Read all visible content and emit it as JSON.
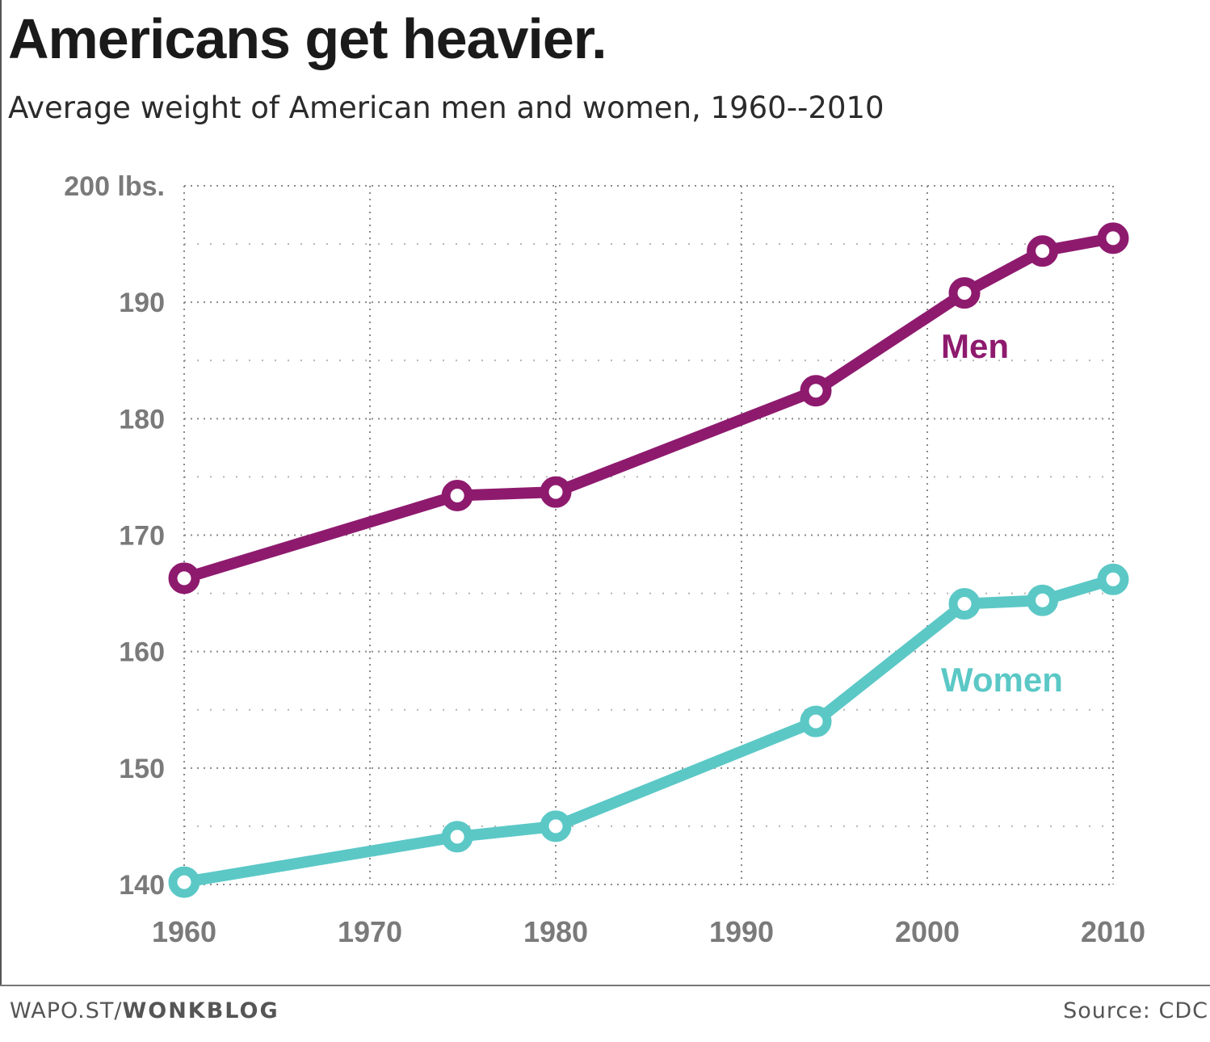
{
  "header": {
    "title": "Americans get heavier.",
    "subtitle": "Average weight of American men and women, 1960--2010"
  },
  "footer": {
    "site": "WAPO.ST/",
    "brand": "WONKBLOG",
    "source": "Source: CDC"
  },
  "colors": {
    "men": "#8e1a6e",
    "women": "#5bc8c6",
    "axis_text": "#7a7a7a",
    "grid": "#8a8a8a"
  },
  "chart_data": {
    "type": "line",
    "title": "Americans get heavier.",
    "subtitle": "Average weight of American men and women, 1960--2010",
    "xlim": [
      1960,
      2010
    ],
    "ylim": [
      140,
      200
    ],
    "x_ticks": [
      1960,
      1970,
      1980,
      1990,
      2000,
      2010
    ],
    "x_tick_labels": [
      "1960",
      "1970",
      "1980",
      "1990",
      "2000",
      "2010"
    ],
    "y_ticks": [
      140,
      150,
      160,
      170,
      180,
      190,
      200
    ],
    "y_tick_labels": [
      "140",
      "150",
      "160",
      "170",
      "180",
      "190",
      "200 lbs."
    ],
    "grid": true,
    "legend": "inline labels",
    "series": [
      {
        "name": "Men",
        "x": [
          1960,
          1974.7,
          1980,
          1994,
          2002,
          2006.2,
          2010
        ],
        "values": [
          166.3,
          173.4,
          173.7,
          182.4,
          190.8,
          194.4,
          195.5
        ]
      },
      {
        "name": "Women",
        "x": [
          1960,
          1974.7,
          1980,
          1994,
          2002,
          2006.2,
          2010
        ],
        "values": [
          140.2,
          144.1,
          145.0,
          154.0,
          164.1,
          164.4,
          166.2
        ]
      }
    ]
  }
}
